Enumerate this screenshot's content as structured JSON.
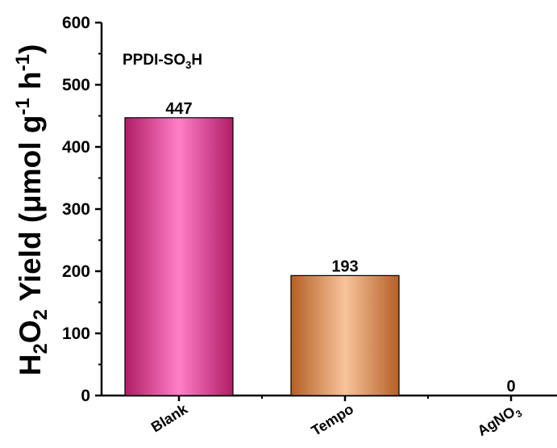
{
  "chart_data": {
    "type": "bar",
    "annotation": "PPDI-SO3H",
    "annotation_parts": {
      "main": "PPDI-SO",
      "sub": "3",
      "tail": "H"
    },
    "ylabel_parts": {
      "h": "H",
      "sub1": "2",
      "o": "O",
      "sub2": "2",
      "mid": " Yield (μmol g",
      "sup1": "-1",
      "sp": " h",
      "sup2": "-1",
      "end": ")"
    },
    "ylabel": "H2O2 Yield (μmol g-1 h-1)",
    "ylim": [
      0,
      600
    ],
    "yticks": [
      0,
      100,
      200,
      300,
      400,
      500,
      600
    ],
    "grid": false,
    "categories": [
      "Blank",
      "Tempo",
      "AgNO3"
    ],
    "category_parts": [
      {
        "main": "Blank",
        "sub": ""
      },
      {
        "main": "Tempo",
        "sub": ""
      },
      {
        "main": "AgNO",
        "sub": "3"
      }
    ],
    "values": [
      447,
      193,
      0
    ],
    "data_labels": [
      "447",
      "193",
      "0"
    ],
    "colors": [
      {
        "dark": "#b01c66",
        "light": "#ff7fc6"
      },
      {
        "dark": "#b55f25",
        "light": "#f8c39a"
      },
      {
        "dark": "#888888",
        "light": "#cccccc"
      }
    ]
  }
}
